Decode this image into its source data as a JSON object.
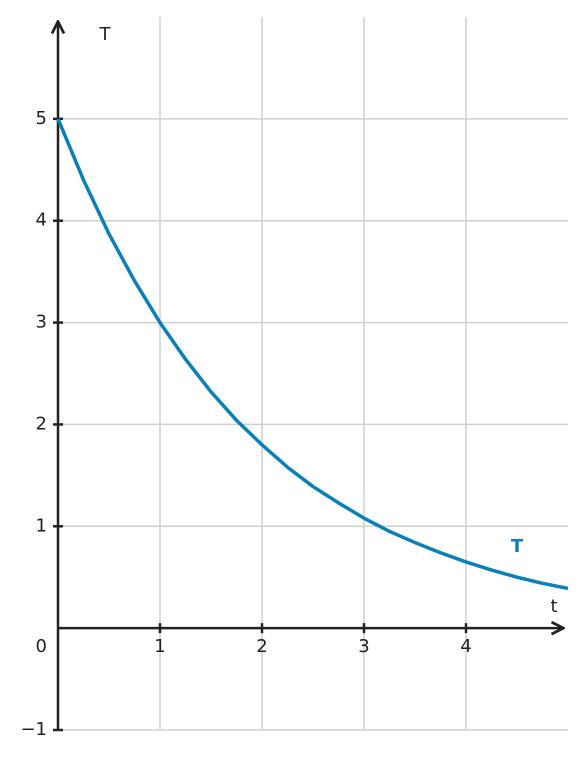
{
  "chart_data": {
    "type": "line",
    "x_label": "T",
    "y_label": "T",
    "x_axis_label": "t",
    "x": [
      0,
      0.25,
      0.5,
      0.75,
      1,
      1.25,
      1.5,
      1.75,
      2,
      2.25,
      2.5,
      2.75,
      3,
      3.25,
      3.5,
      3.75,
      4,
      4.25,
      4.5,
      4.75,
      5
    ],
    "series": [
      {
        "name": "T",
        "color": "#0a80b8",
        "values": [
          5,
          4.4,
          3.87,
          3.41,
          3,
          2.64,
          2.32,
          2.04,
          1.8,
          1.58,
          1.39,
          1.23,
          1.08,
          0.95,
          0.84,
          0.74,
          0.65,
          0.57,
          0.5,
          0.44,
          0.39
        ]
      }
    ],
    "xlim": [
      0,
      5
    ],
    "ylim": [
      -1,
      6
    ],
    "xticks": [
      1,
      2,
      3,
      4
    ],
    "yticks": [
      {
        "value": -1,
        "label": "−1"
      },
      0,
      1,
      2,
      3,
      4,
      5
    ],
    "grid": true
  }
}
